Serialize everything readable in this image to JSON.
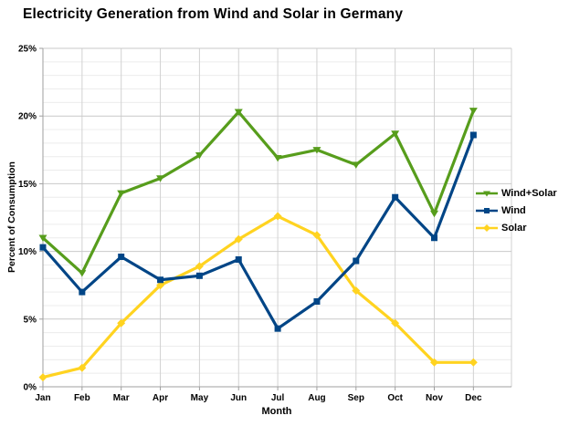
{
  "title": "Electricity Generation from Wind and Solar in Germany",
  "chart_data": {
    "type": "line",
    "title": "Electricity Generation from Wind and Solar in Germany",
    "xlabel": "Month",
    "ylabel": "Percent of Consumption",
    "categories": [
      "Jan",
      "Feb",
      "Mar",
      "Apr",
      "May",
      "Jun",
      "Jul",
      "Aug",
      "Sep",
      "Oct",
      "Nov",
      "Dec"
    ],
    "series": [
      {
        "name": "Wind+Solar",
        "color": "#579d1c",
        "marker": "triangle-down",
        "values": [
          11.0,
          8.4,
          14.3,
          15.4,
          17.1,
          20.3,
          16.9,
          17.5,
          16.4,
          18.7,
          12.8,
          20.4
        ]
      },
      {
        "name": "Wind",
        "color": "#004586",
        "marker": "square",
        "values": [
          10.3,
          7.0,
          9.6,
          7.9,
          8.2,
          9.4,
          4.3,
          6.3,
          9.3,
          14.0,
          11.0,
          18.6
        ]
      },
      {
        "name": "Solar",
        "color": "#ffd320",
        "marker": "diamond",
        "values": [
          0.7,
          1.4,
          4.7,
          7.5,
          8.9,
          10.9,
          12.6,
          11.2,
          7.1,
          4.7,
          1.8,
          1.8
        ]
      }
    ],
    "ylim": [
      0,
      25
    ],
    "y_major_step": 5,
    "y_minor_step": 1,
    "y_tick_labels": [
      "0%",
      "5%",
      "10%",
      "15%",
      "20%",
      "25%"
    ],
    "grid": "on",
    "legend_position": "right",
    "colors": {
      "axis": "#9f9f9f",
      "grid_major": "#c9c9c9",
      "grid_minor": "#ececec",
      "grid_vertical": "#d2d2d2",
      "text": "#000000",
      "background": "#ffffff"
    }
  }
}
